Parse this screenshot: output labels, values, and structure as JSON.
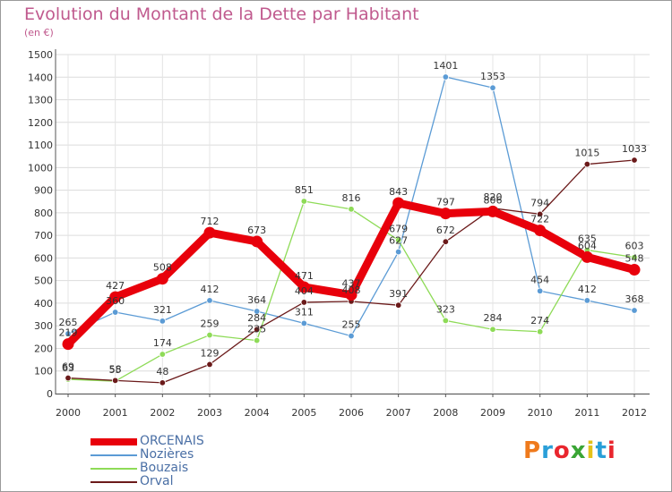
{
  "title": "Evolution du Montant de la Dette par Habitant",
  "subtitle": "(en €)",
  "logo": {
    "text": "Proxiti",
    "colors": [
      "#ef7a1c",
      "#2a9fd8",
      "#e9262e",
      "#3aa535",
      "#e4c21a",
      "#2a9fd8",
      "#e9262e"
    ]
  },
  "chart_data": {
    "type": "line",
    "x": [
      "2000",
      "2001",
      "2002",
      "2003",
      "2004",
      "2005",
      "2006",
      "2007",
      "2008",
      "2009",
      "2010",
      "2011",
      "2012"
    ],
    "ylim": [
      0,
      1500
    ],
    "yticks": [
      0,
      100,
      200,
      300,
      400,
      500,
      600,
      700,
      800,
      900,
      1000,
      1100,
      1200,
      1300,
      1400,
      1500
    ],
    "grid": true,
    "legend_position": "bottom-left",
    "series": [
      {
        "name": "ORCENAIS",
        "color": "#e8000b",
        "values": [
          219,
          427,
          508,
          712,
          673,
          471,
          437,
          843,
          797,
          806,
          722,
          604,
          548
        ]
      },
      {
        "name": "Nozières",
        "color": "#5b9bd5",
        "values": [
          265,
          360,
          321,
          412,
          364,
          311,
          255,
          627,
          1401,
          1353,
          454,
          412,
          368
        ]
      },
      {
        "name": "Bouzais",
        "color": "#8edb57",
        "values": [
          63,
          55,
          174,
          259,
          235,
          851,
          816,
          679,
          323,
          284,
          274,
          635,
          603
        ]
      },
      {
        "name": "Orval",
        "color": "#6b1a1a",
        "values": [
          69,
          58,
          48,
          129,
          284,
          404,
          408,
          391,
          672,
          820,
          794,
          1015,
          1033
        ]
      }
    ]
  }
}
